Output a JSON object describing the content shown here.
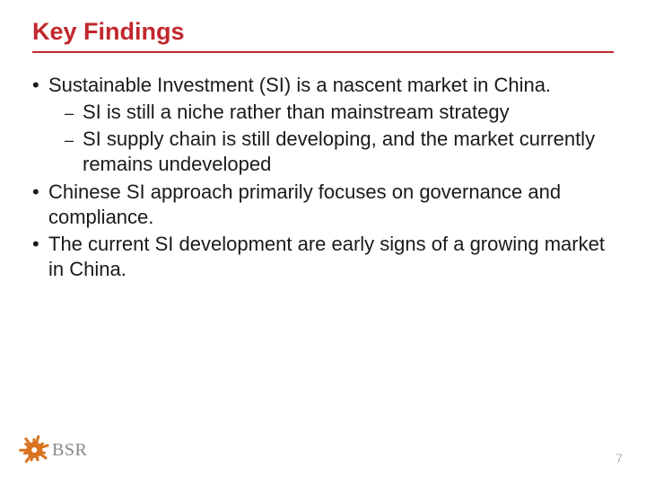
{
  "title": "Key Findings",
  "title_color": "#c1272d",
  "underline_color": "#c1272d",
  "bullets": {
    "b1": "Sustainable Investment (SI) is a nascent market in China.",
    "b1a": " SI is still a niche rather than mainstream strategy",
    "b1b": "SI supply chain is still developing, and the market currently remains undeveloped",
    "b2": "Chinese SI approach primarily focuses on governance and compliance.",
    "b3": "The current SI development are early signs of a growing market in China."
  },
  "body_fontsize": 22,
  "body_color": "#1a1a1a",
  "logo_text": "BSR",
  "logo_color": "#888888",
  "spark_color": "#d9721e",
  "page_number": "7",
  "page_number_color": "#b0b0b0",
  "background_color": "#ffffff"
}
